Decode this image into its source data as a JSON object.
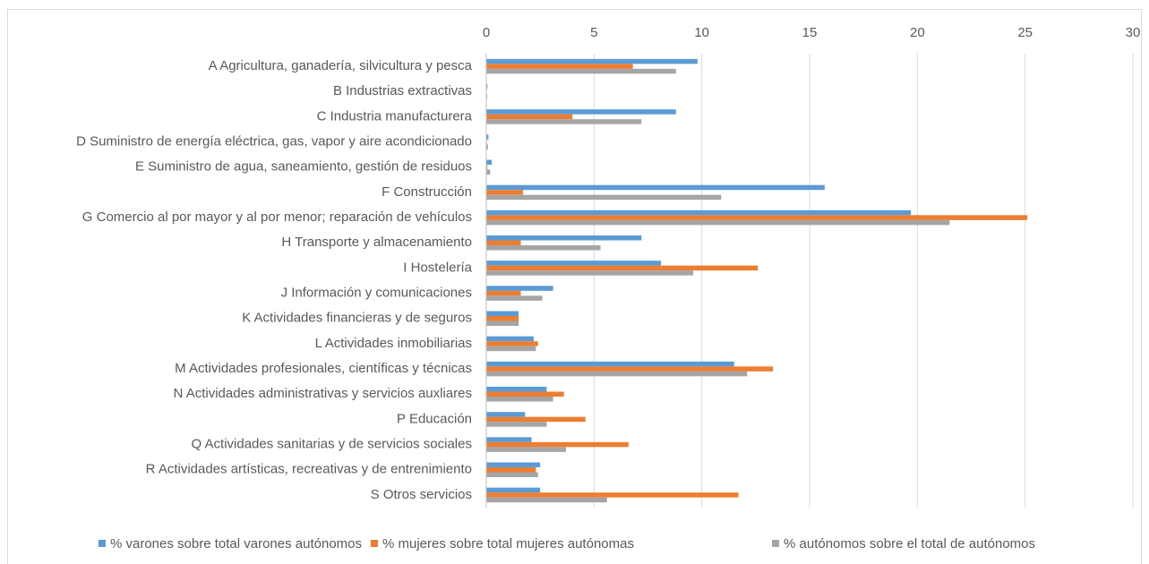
{
  "chart_data": {
    "type": "bar",
    "orientation": "horizontal",
    "categories": [
      "A Agricultura, ganadería, silvicultura y pesca",
      "B Industrias extractivas",
      "C Industria manufacturera",
      "D Suministro de energía eléctrica, gas, vapor y aire acondicionado",
      "E Suministro de agua, saneamiento, gestión de residuos",
      "F Construcción",
      "G Comercio al por mayor y al por menor; reparación de vehículos",
      "H Transporte y almacenamiento",
      "I Hostelería",
      "J Información y comunicaciones",
      "K Actividades financieras y de seguros",
      "L Actividades inmobiliarias",
      "M Actividades profesionales, científicas y técnicas",
      "N Actividades administrativas y servicios auxliares",
      "P Educación",
      "Q Actividades sanitarias y de servicios sociales",
      "R Actividades artísticas, recreativas y de entrenimiento",
      "S Otros servicios"
    ],
    "series": [
      {
        "name": "% varones sobre total varones autónomos",
        "color": "#5b9bd5",
        "values": [
          9.8,
          0.05,
          8.8,
          0.1,
          0.25,
          15.7,
          19.7,
          7.2,
          8.1,
          3.1,
          1.5,
          2.2,
          11.5,
          2.8,
          1.8,
          2.1,
          2.5,
          2.5
        ]
      },
      {
        "name": "% mujeres sobre total mujeres autónomas",
        "color": "#ed7d31",
        "values": [
          6.8,
          0.02,
          4.0,
          0.03,
          0.05,
          1.7,
          25.1,
          1.6,
          12.6,
          1.6,
          1.5,
          2.4,
          13.3,
          3.6,
          4.6,
          6.6,
          2.3,
          11.7
        ]
      },
      {
        "name": "% autónomos sobre el total de autónomos",
        "color": "#a5a5a5",
        "values": [
          8.8,
          0.04,
          7.2,
          0.08,
          0.18,
          10.9,
          21.5,
          5.3,
          9.6,
          2.6,
          1.5,
          2.3,
          12.1,
          3.1,
          2.8,
          3.7,
          2.4,
          5.6
        ]
      }
    ],
    "xlim": [
      0,
      30
    ],
    "xticks": [
      0,
      5,
      10,
      15,
      20,
      25,
      30
    ],
    "grid": true,
    "legend": "bottom"
  }
}
